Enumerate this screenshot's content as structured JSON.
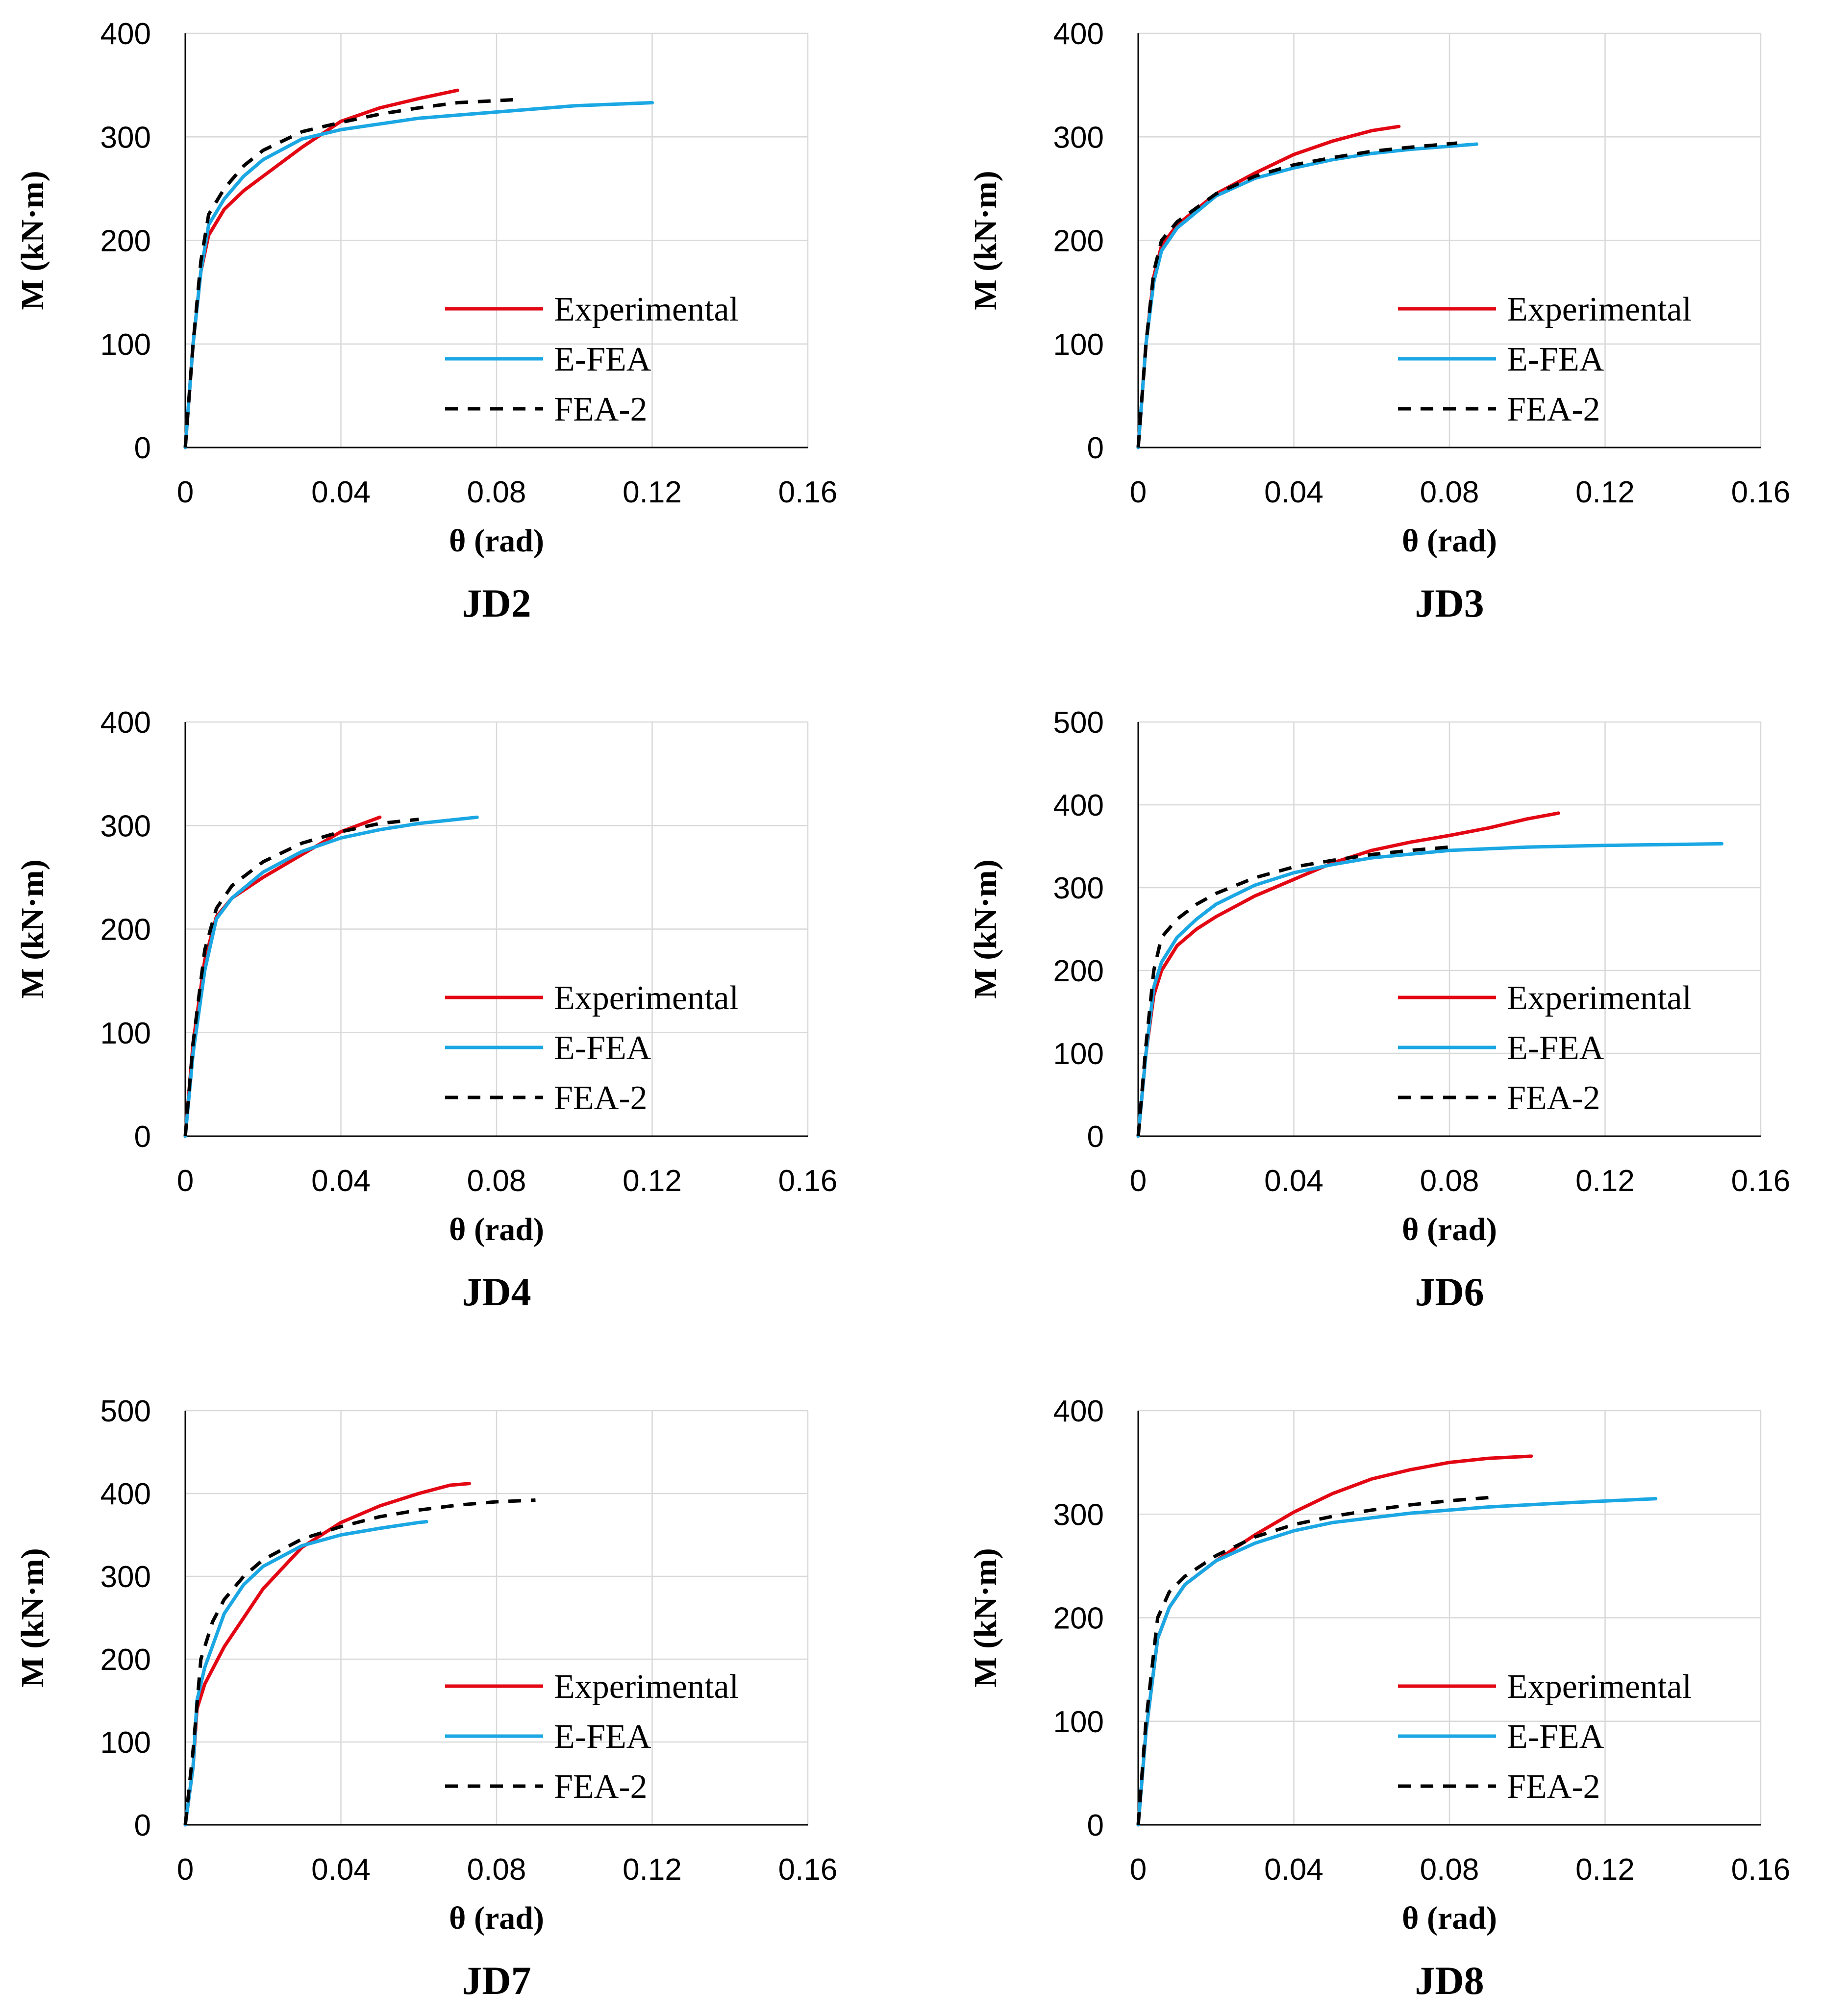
{
  "colors": {
    "experimental": "#e30613",
    "efea": "#1aa7e3",
    "fea2": "#000000"
  },
  "chart_data": [
    {
      "type": "line",
      "title": "JD2",
      "xlabel": "θ (rad)",
      "ylabel": "M (kN·m)",
      "xlim": [
        0,
        0.16
      ],
      "ylim": [
        0,
        400
      ],
      "xticks": [
        "0",
        "0.04",
        "0.08",
        "0.12",
        "0.16"
      ],
      "yticks": [
        "0",
        "100",
        "200",
        "300",
        "400"
      ],
      "legend": [
        "Experimental",
        "E-FEA",
        "FEA-2"
      ],
      "series": [
        {
          "name": "Experimental",
          "points": [
            [
              0,
              0
            ],
            [
              0.002,
              100
            ],
            [
              0.004,
              170
            ],
            [
              0.006,
              205
            ],
            [
              0.01,
              230
            ],
            [
              0.015,
              248
            ],
            [
              0.02,
              262
            ],
            [
              0.03,
              290
            ],
            [
              0.04,
              315
            ],
            [
              0.05,
              328
            ],
            [
              0.06,
              337
            ],
            [
              0.07,
              345
            ]
          ]
        },
        {
          "name": "E-FEA",
          "points": [
            [
              0,
              0
            ],
            [
              0.002,
              100
            ],
            [
              0.004,
              170
            ],
            [
              0.006,
              215
            ],
            [
              0.01,
              240
            ],
            [
              0.015,
              262
            ],
            [
              0.02,
              278
            ],
            [
              0.03,
              298
            ],
            [
              0.04,
              307
            ],
            [
              0.06,
              318
            ],
            [
              0.08,
              324
            ],
            [
              0.1,
              330
            ],
            [
              0.12,
              333
            ]
          ]
        },
        {
          "name": "FEA-2",
          "points": [
            [
              0,
              0
            ],
            [
              0.002,
              100
            ],
            [
              0.004,
              180
            ],
            [
              0.006,
              225
            ],
            [
              0.01,
              250
            ],
            [
              0.015,
              272
            ],
            [
              0.02,
              287
            ],
            [
              0.03,
              305
            ],
            [
              0.04,
              314
            ],
            [
              0.05,
              322
            ],
            [
              0.06,
              328
            ],
            [
              0.07,
              333
            ],
            [
              0.085,
              336
            ]
          ]
        }
      ]
    },
    {
      "type": "line",
      "title": "JD3",
      "xlabel": "θ (rad)",
      "ylabel": "M (kN·m)",
      "xlim": [
        0,
        0.16
      ],
      "ylim": [
        0,
        400
      ],
      "xticks": [
        "0",
        "0.04",
        "0.08",
        "0.12",
        "0.16"
      ],
      "yticks": [
        "0",
        "100",
        "200",
        "300",
        "400"
      ],
      "legend": [
        "Experimental",
        "E-FEA",
        "FEA-2"
      ],
      "series": [
        {
          "name": "Experimental",
          "points": [
            [
              0,
              0
            ],
            [
              0.002,
              100
            ],
            [
              0.004,
              165
            ],
            [
              0.006,
              195
            ],
            [
              0.01,
              215
            ],
            [
              0.02,
              245
            ],
            [
              0.03,
              265
            ],
            [
              0.04,
              283
            ],
            [
              0.05,
              296
            ],
            [
              0.06,
              306
            ],
            [
              0.067,
              310
            ]
          ]
        },
        {
          "name": "E-FEA",
          "points": [
            [
              0,
              0
            ],
            [
              0.002,
              100
            ],
            [
              0.004,
              160
            ],
            [
              0.006,
              190
            ],
            [
              0.01,
              212
            ],
            [
              0.02,
              243
            ],
            [
              0.03,
              260
            ],
            [
              0.04,
              270
            ],
            [
              0.05,
              278
            ],
            [
              0.06,
              284
            ],
            [
              0.07,
              288
            ],
            [
              0.087,
              293
            ]
          ]
        },
        {
          "name": "FEA-2",
          "points": [
            [
              0,
              0
            ],
            [
              0.002,
              100
            ],
            [
              0.004,
              170
            ],
            [
              0.006,
              200
            ],
            [
              0.01,
              218
            ],
            [
              0.02,
              245
            ],
            [
              0.03,
              262
            ],
            [
              0.04,
              273
            ],
            [
              0.05,
              280
            ],
            [
              0.06,
              286
            ],
            [
              0.07,
              290
            ],
            [
              0.082,
              294
            ]
          ]
        }
      ]
    },
    {
      "type": "line",
      "title": "JD4",
      "xlabel": "θ (rad)",
      "ylabel": "M (kN·m)",
      "xlim": [
        0,
        0.16
      ],
      "ylim": [
        0,
        400
      ],
      "xticks": [
        "0",
        "0.04",
        "0.08",
        "0.12",
        "0.16"
      ],
      "yticks": [
        "0",
        "100",
        "200",
        "300",
        "400"
      ],
      "legend": [
        "Experimental",
        "E-FEA",
        "FEA-2"
      ],
      "series": [
        {
          "name": "Experimental",
          "points": [
            [
              0,
              0
            ],
            [
              0.002,
              90
            ],
            [
              0.005,
              170
            ],
            [
              0.008,
              212
            ],
            [
              0.012,
              230
            ],
            [
              0.02,
              250
            ],
            [
              0.03,
              272
            ],
            [
              0.04,
              294
            ],
            [
              0.05,
              308
            ]
          ]
        },
        {
          "name": "E-FEA",
          "points": [
            [
              0,
              0
            ],
            [
              0.002,
              80
            ],
            [
              0.005,
              160
            ],
            [
              0.008,
              210
            ],
            [
              0.012,
              230
            ],
            [
              0.02,
              255
            ],
            [
              0.03,
              275
            ],
            [
              0.04,
              288
            ],
            [
              0.05,
              296
            ],
            [
              0.06,
              302
            ],
            [
              0.075,
              308
            ]
          ]
        },
        {
          "name": "FEA-2",
          "points": [
            [
              0,
              0
            ],
            [
              0.002,
              90
            ],
            [
              0.005,
              180
            ],
            [
              0.008,
              220
            ],
            [
              0.012,
              242
            ],
            [
              0.02,
              265
            ],
            [
              0.03,
              283
            ],
            [
              0.04,
              294
            ],
            [
              0.05,
              302
            ],
            [
              0.06,
              306
            ]
          ]
        }
      ]
    },
    {
      "type": "line",
      "title": "JD6",
      "xlabel": "θ (rad)",
      "ylabel": "M (kN·m)",
      "xlim": [
        0,
        0.16
      ],
      "ylim": [
        0,
        500
      ],
      "xticks": [
        "0",
        "0.04",
        "0.08",
        "0.12",
        "0.16"
      ],
      "yticks": [
        "0",
        "100",
        "200",
        "300",
        "400",
        "500"
      ],
      "legend": [
        "Experimental",
        "E-FEA",
        "FEA-2"
      ],
      "series": [
        {
          "name": "Experimental",
          "points": [
            [
              0,
              0
            ],
            [
              0.002,
              100
            ],
            [
              0.004,
              170
            ],
            [
              0.006,
              200
            ],
            [
              0.01,
              230
            ],
            [
              0.015,
              250
            ],
            [
              0.02,
              265
            ],
            [
              0.03,
              290
            ],
            [
              0.04,
              310
            ],
            [
              0.05,
              330
            ],
            [
              0.06,
              345
            ],
            [
              0.07,
              355
            ],
            [
              0.08,
              363
            ],
            [
              0.09,
              372
            ],
            [
              0.1,
              383
            ],
            [
              0.108,
              390
            ]
          ]
        },
        {
          "name": "E-FEA",
          "points": [
            [
              0,
              0
            ],
            [
              0.002,
              100
            ],
            [
              0.004,
              180
            ],
            [
              0.006,
              210
            ],
            [
              0.01,
              240
            ],
            [
              0.015,
              262
            ],
            [
              0.02,
              280
            ],
            [
              0.03,
              303
            ],
            [
              0.04,
              318
            ],
            [
              0.05,
              328
            ],
            [
              0.06,
              336
            ],
            [
              0.08,
              345
            ],
            [
              0.1,
              349
            ],
            [
              0.12,
              351
            ],
            [
              0.15,
              353
            ]
          ]
        },
        {
          "name": "FEA-2",
          "points": [
            [
              0,
              0
            ],
            [
              0.002,
              110
            ],
            [
              0.004,
              200
            ],
            [
              0.006,
              240
            ],
            [
              0.01,
              262
            ],
            [
              0.015,
              280
            ],
            [
              0.02,
              293
            ],
            [
              0.03,
              312
            ],
            [
              0.04,
              325
            ],
            [
              0.05,
              333
            ],
            [
              0.06,
              340
            ],
            [
              0.07,
              345
            ],
            [
              0.08,
              349
            ]
          ]
        }
      ]
    },
    {
      "type": "line",
      "title": "JD7",
      "xlabel": "θ (rad)",
      "ylabel": "M (kN·m)",
      "xlim": [
        0,
        0.16
      ],
      "ylim": [
        0,
        500
      ],
      "xticks": [
        "0",
        "0.04",
        "0.08",
        "0.12",
        "0.16"
      ],
      "yticks": [
        "0",
        "100",
        "200",
        "300",
        "400",
        "500"
      ],
      "legend": [
        "Experimental",
        "E-FEA",
        "FEA-2"
      ],
      "series": [
        {
          "name": "Experimental",
          "points": [
            [
              0,
              0
            ],
            [
              0.002,
              70
            ],
            [
              0.003,
              140
            ],
            [
              0.005,
              170
            ],
            [
              0.01,
              215
            ],
            [
              0.015,
              250
            ],
            [
              0.02,
              285
            ],
            [
              0.03,
              335
            ],
            [
              0.04,
              365
            ],
            [
              0.05,
              385
            ],
            [
              0.06,
              400
            ],
            [
              0.068,
              410
            ],
            [
              0.073,
              412
            ]
          ]
        },
        {
          "name": "E-FEA",
          "points": [
            [
              0,
              0
            ],
            [
              0.002,
              70
            ],
            [
              0.003,
              150
            ],
            [
              0.005,
              190
            ],
            [
              0.01,
              255
            ],
            [
              0.015,
              290
            ],
            [
              0.02,
              312
            ],
            [
              0.03,
              337
            ],
            [
              0.04,
              350
            ],
            [
              0.05,
              358
            ],
            [
              0.06,
              365
            ],
            [
              0.062,
              366
            ]
          ]
        },
        {
          "name": "FEA-2",
          "points": [
            [
              0,
              0
            ],
            [
              0.002,
              90
            ],
            [
              0.004,
              200
            ],
            [
              0.007,
              245
            ],
            [
              0.01,
              272
            ],
            [
              0.015,
              300
            ],
            [
              0.02,
              320
            ],
            [
              0.03,
              345
            ],
            [
              0.04,
              360
            ],
            [
              0.05,
              372
            ],
            [
              0.06,
              380
            ],
            [
              0.07,
              386
            ],
            [
              0.08,
              390
            ],
            [
              0.09,
              392
            ]
          ]
        }
      ]
    },
    {
      "type": "line",
      "title": "JD8",
      "xlabel": "θ (rad)",
      "ylabel": "M (kN·m)",
      "xlim": [
        0,
        0.16
      ],
      "ylim": [
        0,
        400
      ],
      "xticks": [
        "0",
        "0.04",
        "0.08",
        "0.12",
        "0.16"
      ],
      "yticks": [
        "0",
        "100",
        "200",
        "300",
        "400"
      ],
      "legend": [
        "Experimental",
        "E-FEA",
        "FEA-2"
      ],
      "series": [
        {
          "name": "Experimental",
          "points": [
            [
              0,
              0
            ],
            [
              0.002,
              90
            ],
            [
              0.005,
              180
            ],
            [
              0.008,
              210
            ],
            [
              0.012,
              232
            ],
            [
              0.02,
              255
            ],
            [
              0.03,
              280
            ],
            [
              0.04,
              302
            ],
            [
              0.05,
              320
            ],
            [
              0.06,
              334
            ],
            [
              0.07,
              343
            ],
            [
              0.08,
              350
            ],
            [
              0.09,
              354
            ],
            [
              0.101,
              356
            ]
          ]
        },
        {
          "name": "E-FEA",
          "points": [
            [
              0,
              0
            ],
            [
              0.002,
              90
            ],
            [
              0.005,
              180
            ],
            [
              0.008,
              210
            ],
            [
              0.012,
              232
            ],
            [
              0.02,
              255
            ],
            [
              0.03,
              272
            ],
            [
              0.04,
              284
            ],
            [
              0.05,
              292
            ],
            [
              0.07,
              301
            ],
            [
              0.09,
              307
            ],
            [
              0.11,
              311
            ],
            [
              0.133,
              315
            ]
          ]
        },
        {
          "name": "FEA-2",
          "points": [
            [
              0,
              0
            ],
            [
              0.002,
              100
            ],
            [
              0.005,
              200
            ],
            [
              0.008,
              225
            ],
            [
              0.012,
              240
            ],
            [
              0.02,
              260
            ],
            [
              0.03,
              278
            ],
            [
              0.04,
              290
            ],
            [
              0.05,
              298
            ],
            [
              0.06,
              304
            ],
            [
              0.07,
              309
            ],
            [
              0.08,
              313
            ],
            [
              0.09,
              316
            ]
          ]
        }
      ]
    }
  ]
}
